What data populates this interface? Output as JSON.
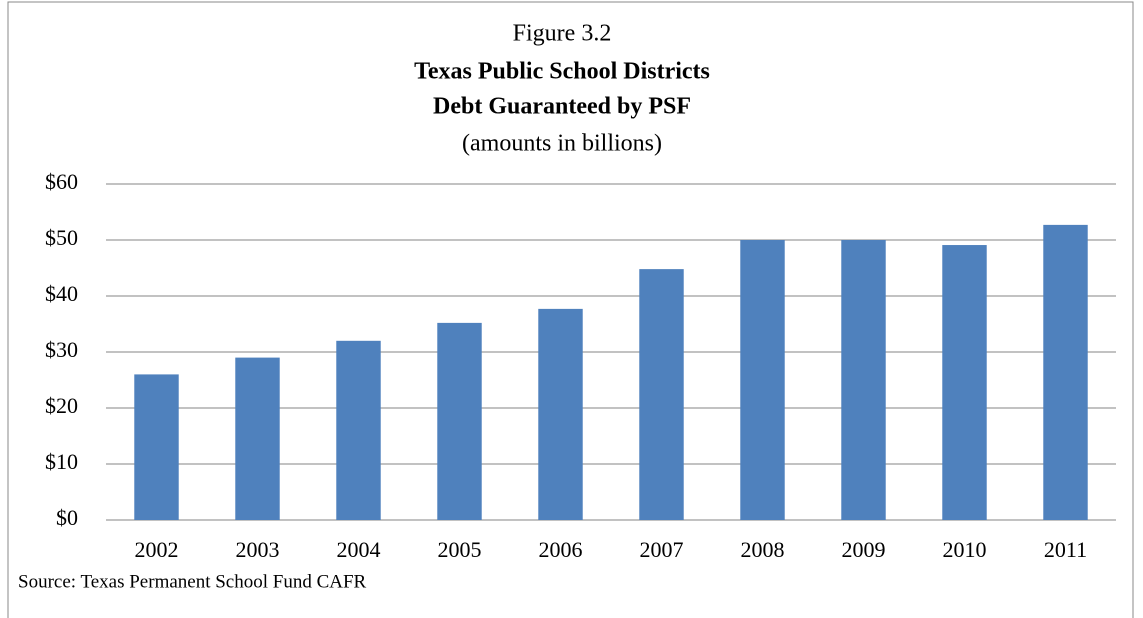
{
  "chart_data": {
    "type": "bar",
    "title": "Figure 3.2",
    "subtitle": [
      "Texas Public School Districts",
      "Debt Guaranteed by PSF"
    ],
    "note": "(amounts in billions)",
    "source": "Source:  Texas  Permanent  School Fund  CAFR",
    "categories": [
      "2002",
      "2003",
      "2004",
      "2005",
      "2006",
      "2007",
      "2008",
      "2009",
      "2010",
      "2011"
    ],
    "values": [
      26,
      29,
      32,
      35.2,
      37.7,
      44.8,
      50,
      50,
      49.1,
      52.7
    ],
    "color": "#4f81bd",
    "ylim": [
      0,
      60
    ],
    "yticks": [
      {
        "value": 0,
        "label": "$0"
      },
      {
        "value": 10,
        "label": "$10"
      },
      {
        "value": 20,
        "label": "$20"
      },
      {
        "value": 30,
        "label": "$30"
      },
      {
        "value": 40,
        "label": "$40"
      },
      {
        "value": 50,
        "label": "$50"
      },
      {
        "value": 60,
        "label": "$60"
      }
    ],
    "grid": true
  }
}
